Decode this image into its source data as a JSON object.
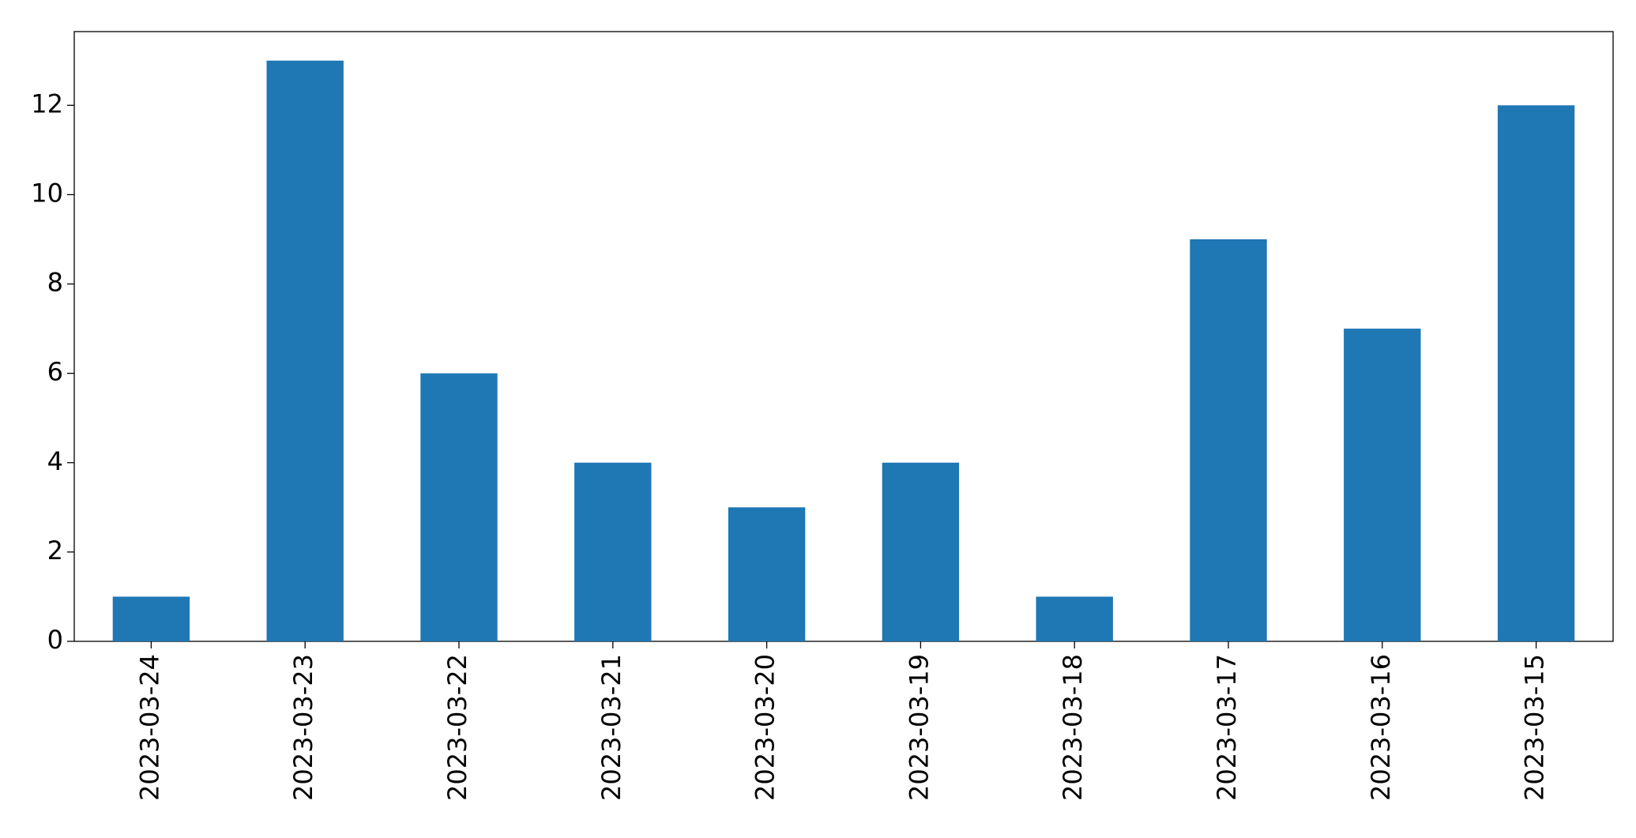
{
  "chart_data": {
    "type": "bar",
    "categories": [
      "2023-03-24",
      "2023-03-23",
      "2023-03-22",
      "2023-03-21",
      "2023-03-20",
      "2023-03-19",
      "2023-03-18",
      "2023-03-17",
      "2023-03-16",
      "2023-03-15"
    ],
    "values": [
      1,
      13,
      6,
      4,
      3,
      4,
      1,
      9,
      7,
      12
    ],
    "color": "#1f77b4",
    "ylim": [
      0,
      13.65
    ],
    "yticks": [
      0,
      2,
      4,
      6,
      8,
      10,
      12
    ],
    "grid": false
  }
}
